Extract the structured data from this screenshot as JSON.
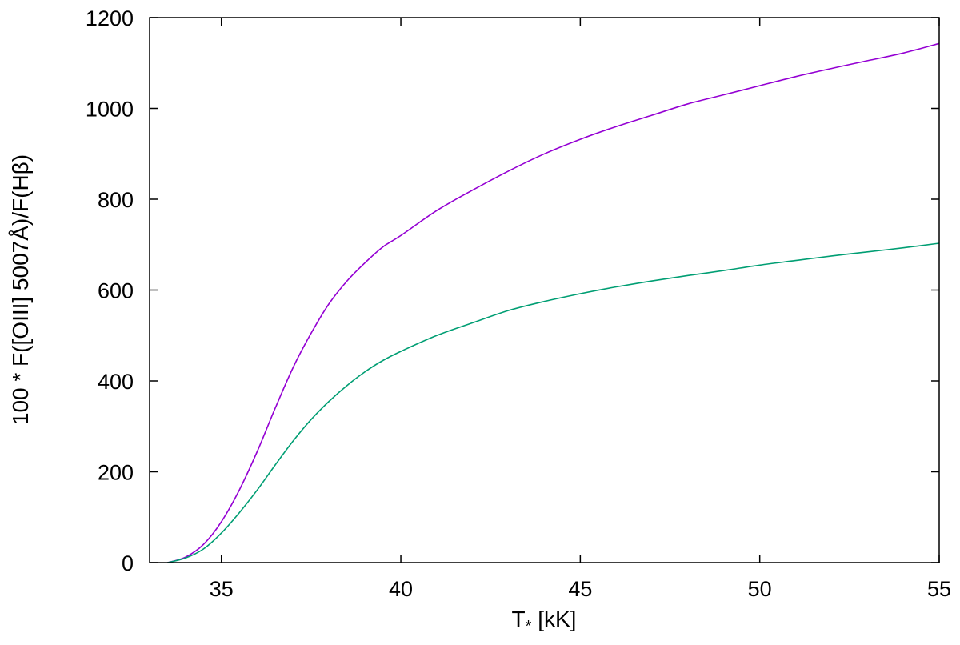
{
  "chart_data": {
    "type": "line",
    "title": "",
    "xlabel": "T",
    "xlabel_sub": "*",
    "xlabel_unit": "[kK]",
    "ylabel": "100 * F([OIII] 5007Å)/F(Hβ)",
    "xlim": [
      33,
      55
    ],
    "ylim": [
      0,
      1200
    ],
    "xticks": [
      35,
      40,
      45,
      50,
      55
    ],
    "yticks": [
      0,
      200,
      400,
      600,
      800,
      1000,
      1200
    ],
    "grid": false,
    "legend": "none",
    "series": [
      {
        "color": "#9400d3",
        "x": [
          33.5,
          34.0,
          34.5,
          35.0,
          35.5,
          36.0,
          36.5,
          37.0,
          37.5,
          38.0,
          38.5,
          39.0,
          39.5,
          40.0,
          41.0,
          42.0,
          43.0,
          44.0,
          45.0,
          46.0,
          47.0,
          48.0,
          49.0,
          50.0,
          51.0,
          52.0,
          53.0,
          54.0,
          55.0
        ],
        "y": [
          0,
          12,
          40,
          90,
          160,
          245,
          340,
          430,
          505,
          570,
          620,
          660,
          695,
          720,
          775,
          820,
          862,
          900,
          932,
          960,
          985,
          1010,
          1030,
          1050,
          1070,
          1088,
          1105,
          1122,
          1143
        ]
      },
      {
        "color": "#009e73",
        "x": [
          33.5,
          34.0,
          34.5,
          35.0,
          35.5,
          36.0,
          36.5,
          37.0,
          37.5,
          38.0,
          38.5,
          39.0,
          39.5,
          40.0,
          41.0,
          42.0,
          43.0,
          44.0,
          45.0,
          46.0,
          47.0,
          48.0,
          49.0,
          50.0,
          51.0,
          52.0,
          53.0,
          54.0,
          55.0
        ],
        "y": [
          0,
          10,
          30,
          65,
          110,
          160,
          215,
          268,
          315,
          355,
          390,
          420,
          445,
          465,
          500,
          528,
          555,
          575,
          592,
          607,
          620,
          632,
          643,
          655,
          665,
          675,
          684,
          693,
          703
        ]
      }
    ]
  }
}
